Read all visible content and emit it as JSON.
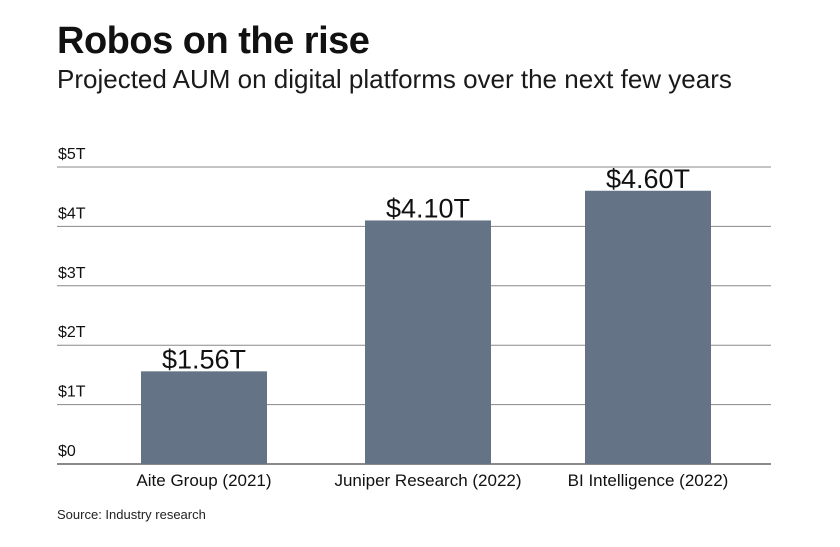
{
  "header": {
    "title": "Robos on the rise",
    "subtitle": "Projected AUM on digital platforms over the next few years"
  },
  "footer": {
    "source": "Source: Industry research"
  },
  "colors": {
    "bar": "#657386",
    "grid": "#888888",
    "text": "#111111"
  },
  "chart_data": {
    "type": "bar",
    "title": "Robos on the rise",
    "subtitle": "Projected AUM on digital platforms over the next few years",
    "xlabel": "",
    "ylabel": "",
    "unit": "trillion USD",
    "categories": [
      "Aite Group (2021)",
      "Juniper Research (2022)",
      "BI Intelligence (2022)"
    ],
    "values": [
      1.56,
      4.1,
      4.6
    ],
    "data_labels": [
      "$1.56T",
      "$4.10T",
      "$4.60T"
    ],
    "ylim": [
      0,
      5
    ],
    "yticks": [
      0,
      1,
      2,
      3,
      4,
      5
    ],
    "ytick_labels": [
      "$0",
      "$1T",
      "$2T",
      "$3T",
      "$4T",
      "$5T"
    ],
    "grid": true,
    "legend": "none"
  }
}
